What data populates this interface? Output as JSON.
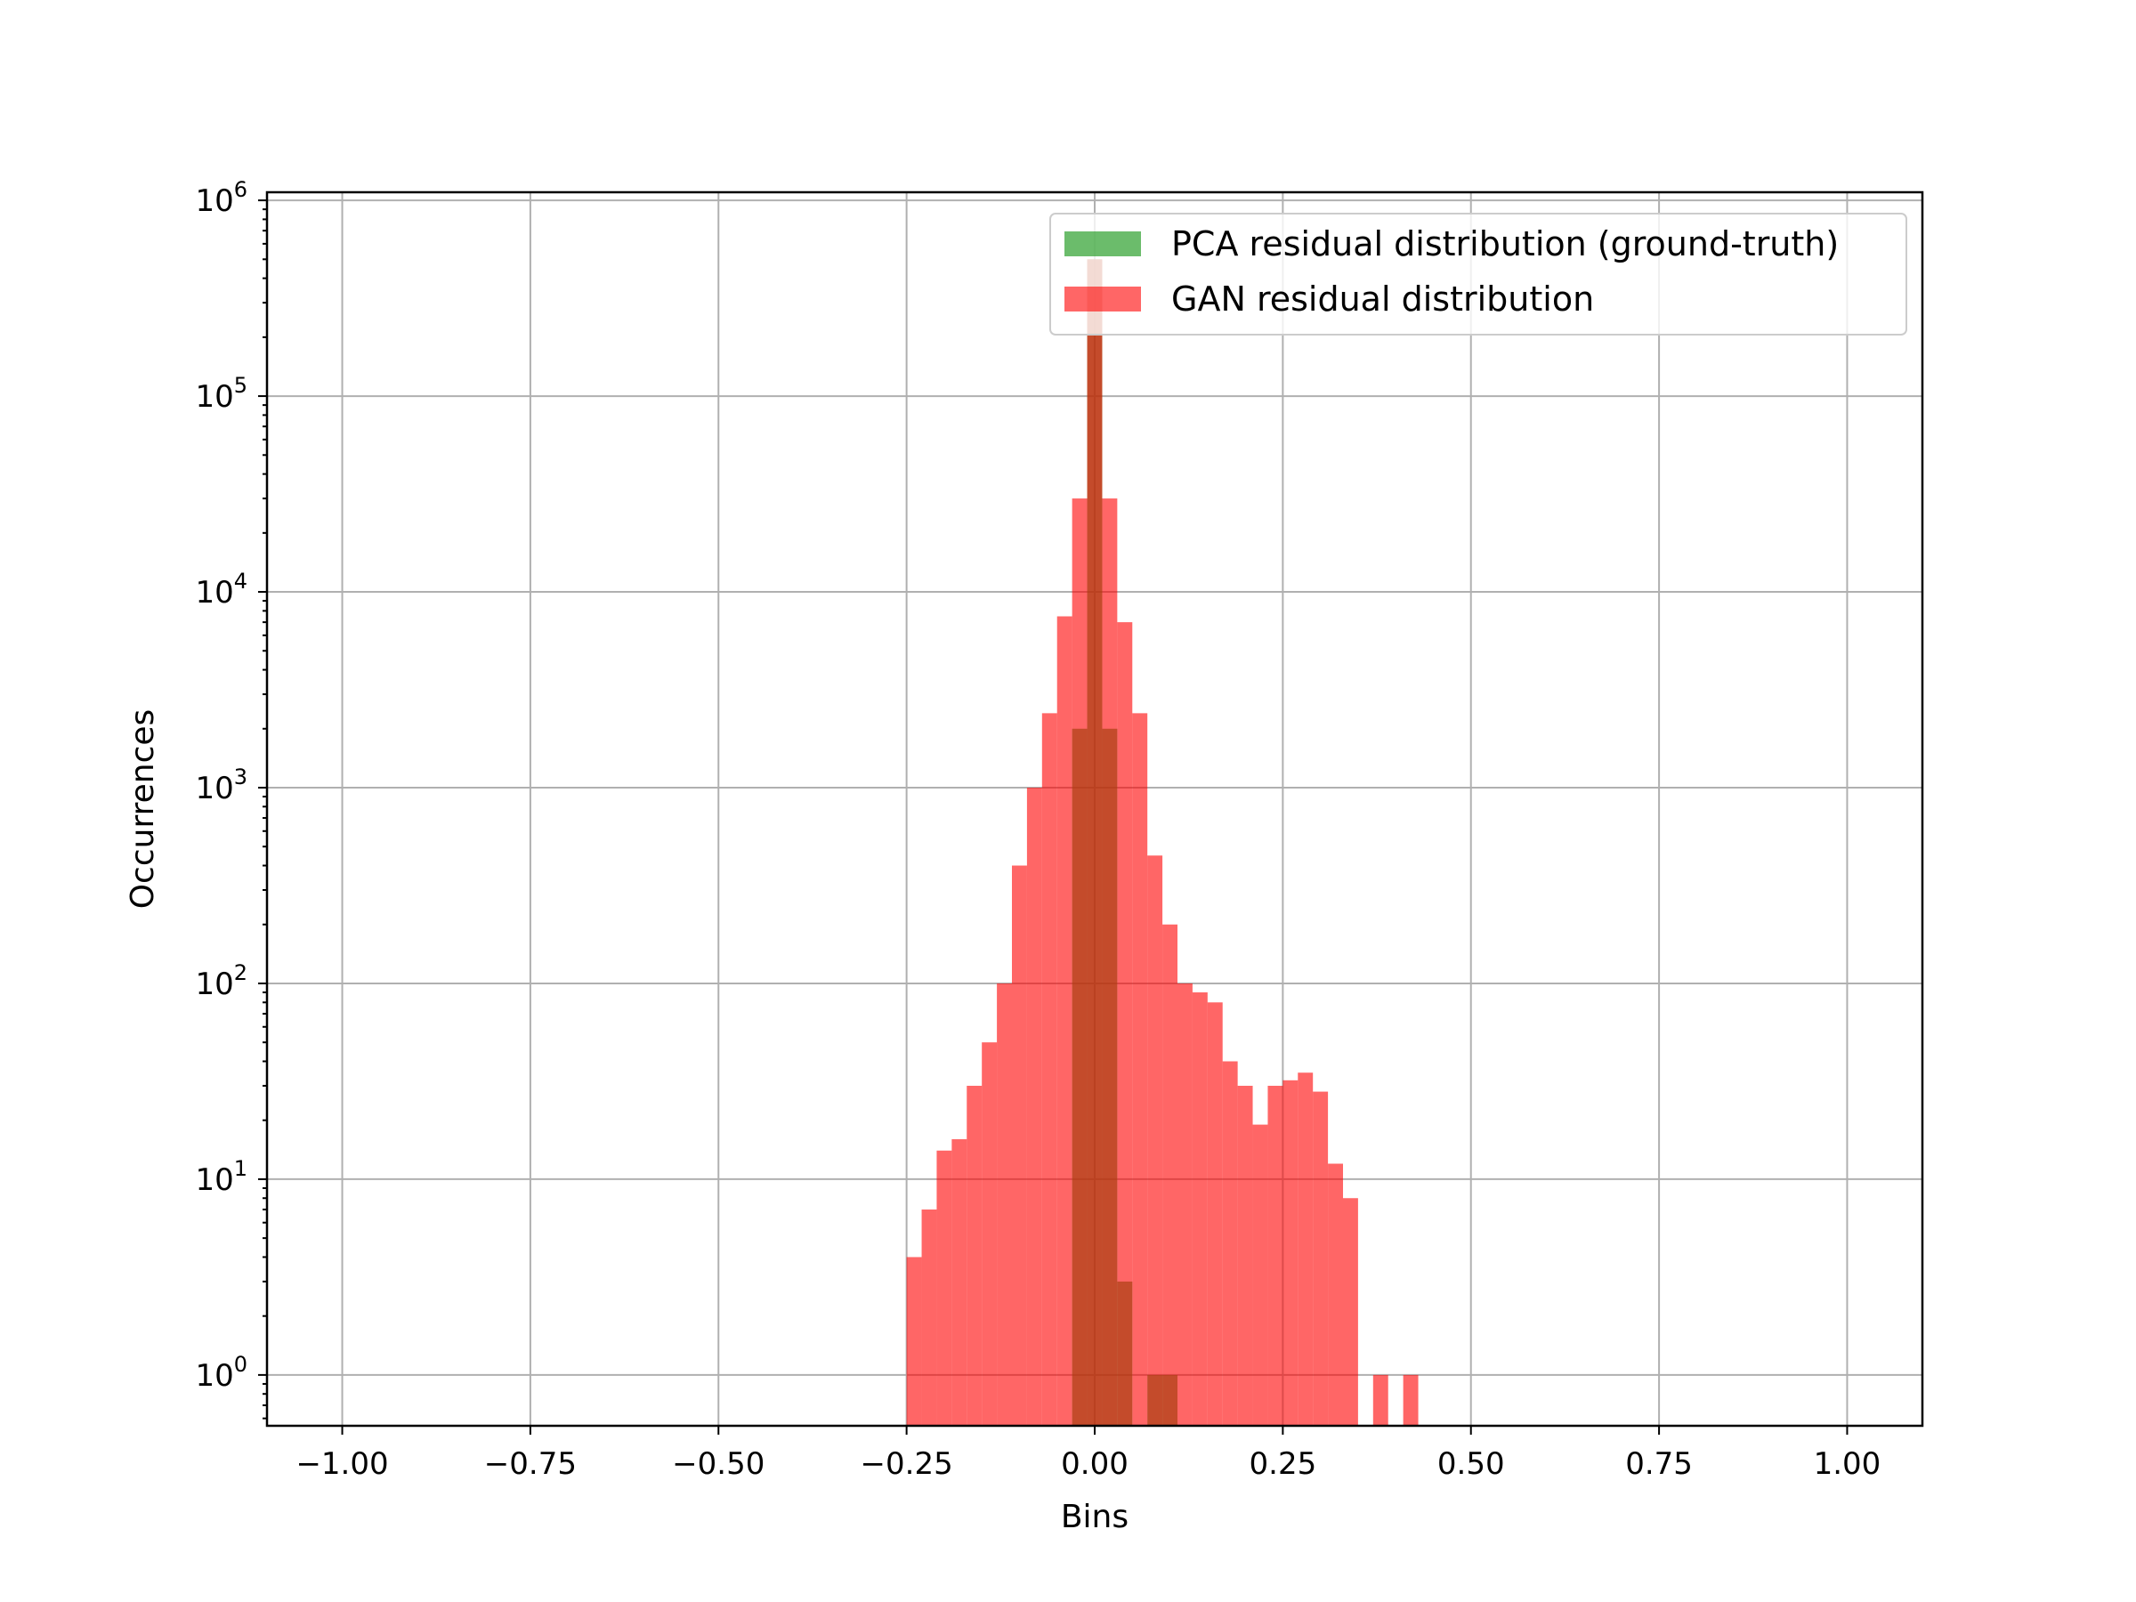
{
  "chart_data": {
    "type": "bar",
    "title": "",
    "xlabel": "Bins",
    "ylabel": "Occurrences",
    "yscale": "log",
    "xlim": [
      -1.1,
      1.1
    ],
    "ylim": [
      0.55,
      1100000.0
    ],
    "grid": true,
    "legend_position": "top-right",
    "x_ticks": [
      "−1.00",
      "−0.75",
      "−0.50",
      "−0.25",
      "0.00",
      "0.25",
      "0.50",
      "0.75",
      "1.00"
    ],
    "x_tick_values": [
      -1.0,
      -0.75,
      -0.5,
      -0.25,
      0.0,
      0.25,
      0.5,
      0.75,
      1.0
    ],
    "y_ticks": [
      {
        "base": "10",
        "exp": "0",
        "value": 1
      },
      {
        "base": "10",
        "exp": "1",
        "value": 10
      },
      {
        "base": "10",
        "exp": "2",
        "value": 100
      },
      {
        "base": "10",
        "exp": "3",
        "value": 1000
      },
      {
        "base": "10",
        "exp": "4",
        "value": 10000
      },
      {
        "base": "10",
        "exp": "5",
        "value": 100000
      },
      {
        "base": "10",
        "exp": "6",
        "value": 1000000
      }
    ],
    "bin_width": 0.02,
    "series": [
      {
        "name": "PCA residual distribution (ground-truth)",
        "color": "#2ca02c",
        "opacity": 0.7,
        "bins": [
          {
            "x0": -0.03,
            "value": 2000
          },
          {
            "x0": -0.01,
            "value": 500000
          },
          {
            "x0": 0.01,
            "value": 2000
          },
          {
            "x0": 0.03,
            "value": 3
          },
          {
            "x0": 0.07,
            "value": 1
          },
          {
            "x0": 0.09,
            "value": 1
          }
        ]
      },
      {
        "name": "GAN residual distribution",
        "color": "#ff0000",
        "opacity": 0.6,
        "bins": [
          {
            "x0": -0.25,
            "value": 4
          },
          {
            "x0": -0.23,
            "value": 7
          },
          {
            "x0": -0.21,
            "value": 14
          },
          {
            "x0": -0.19,
            "value": 16
          },
          {
            "x0": -0.17,
            "value": 30
          },
          {
            "x0": -0.15,
            "value": 50
          },
          {
            "x0": -0.13,
            "value": 100
          },
          {
            "x0": -0.11,
            "value": 400
          },
          {
            "x0": -0.09,
            "value": 1000
          },
          {
            "x0": -0.07,
            "value": 2400
          },
          {
            "x0": -0.05,
            "value": 7500
          },
          {
            "x0": -0.03,
            "value": 30000
          },
          {
            "x0": -0.01,
            "value": 500000
          },
          {
            "x0": 0.01,
            "value": 30000
          },
          {
            "x0": 0.03,
            "value": 7000
          },
          {
            "x0": 0.05,
            "value": 2400
          },
          {
            "x0": 0.07,
            "value": 450
          },
          {
            "x0": 0.09,
            "value": 200
          },
          {
            "x0": 0.11,
            "value": 100
          },
          {
            "x0": 0.13,
            "value": 90
          },
          {
            "x0": 0.15,
            "value": 80
          },
          {
            "x0": 0.17,
            "value": 40
          },
          {
            "x0": 0.19,
            "value": 30
          },
          {
            "x0": 0.21,
            "value": 19
          },
          {
            "x0": 0.23,
            "value": 30
          },
          {
            "x0": 0.25,
            "value": 32
          },
          {
            "x0": 0.27,
            "value": 35
          },
          {
            "x0": 0.29,
            "value": 28
          },
          {
            "x0": 0.31,
            "value": 12
          },
          {
            "x0": 0.33,
            "value": 8
          },
          {
            "x0": 0.37,
            "value": 1
          },
          {
            "x0": 0.41,
            "value": 1
          }
        ]
      }
    ]
  }
}
